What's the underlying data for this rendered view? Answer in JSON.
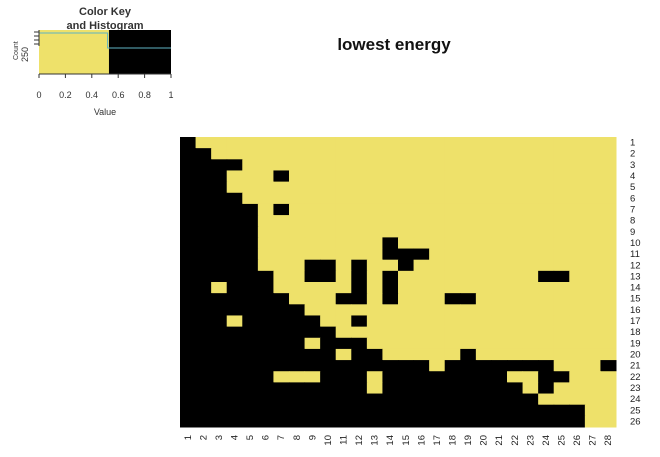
{
  "chart_data": {
    "type": "heatmap",
    "title": "lowest energy",
    "rows": [
      "1",
      "2",
      "3",
      "4",
      "5",
      "6",
      "7",
      "8",
      "9",
      "10",
      "11",
      "12",
      "13",
      "14",
      "15",
      "16",
      "17",
      "18",
      "19",
      "20",
      "21",
      "22",
      "23",
      "24",
      "25",
      "26"
    ],
    "columns": [
      "1",
      "2",
      "3",
      "4",
      "5",
      "6",
      "7",
      "8",
      "9",
      "10",
      "11",
      "12",
      "13",
      "14",
      "15",
      "16",
      "17",
      "18",
      "19",
      "20",
      "21",
      "22",
      "23",
      "24",
      "25",
      "26",
      "27",
      "28"
    ],
    "value_range": [
      0,
      1
    ],
    "colors": {
      "high": "#eee16a",
      "low": "#000000"
    },
    "cells": [
      [
        0,
        1,
        1,
        1,
        1,
        1,
        1,
        1,
        1,
        1,
        1,
        1,
        1,
        1,
        1,
        1,
        1,
        1,
        1,
        1,
        1,
        1,
        1,
        1,
        1,
        1,
        1,
        1
      ],
      [
        0,
        0,
        1,
        1,
        1,
        1,
        1,
        1,
        1,
        1,
        1,
        1,
        1,
        1,
        1,
        1,
        1,
        1,
        1,
        1,
        1,
        1,
        1,
        1,
        1,
        1,
        1,
        1
      ],
      [
        0,
        0,
        0,
        0,
        1,
        1,
        1,
        1,
        1,
        1,
        1,
        1,
        1,
        1,
        1,
        1,
        1,
        1,
        1,
        1,
        1,
        1,
        1,
        1,
        1,
        1,
        1,
        1
      ],
      [
        0,
        0,
        0,
        1,
        1,
        1,
        0,
        1,
        1,
        1,
        1,
        1,
        1,
        1,
        1,
        1,
        1,
        1,
        1,
        1,
        1,
        1,
        1,
        1,
        1,
        1,
        1,
        1
      ],
      [
        0,
        0,
        0,
        1,
        1,
        1,
        1,
        1,
        1,
        1,
        1,
        1,
        1,
        1,
        1,
        1,
        1,
        1,
        1,
        1,
        1,
        1,
        1,
        1,
        1,
        1,
        1,
        1
      ],
      [
        0,
        0,
        0,
        0,
        1,
        1,
        1,
        1,
        1,
        1,
        1,
        1,
        1,
        1,
        1,
        1,
        1,
        1,
        1,
        1,
        1,
        1,
        1,
        1,
        1,
        1,
        1,
        1
      ],
      [
        0,
        0,
        0,
        0,
        0,
        1,
        0,
        1,
        1,
        1,
        1,
        1,
        1,
        1,
        1,
        1,
        1,
        1,
        1,
        1,
        1,
        1,
        1,
        1,
        1,
        1,
        1,
        1
      ],
      [
        0,
        0,
        0,
        0,
        0,
        1,
        1,
        1,
        1,
        1,
        1,
        1,
        1,
        1,
        1,
        1,
        1,
        1,
        1,
        1,
        1,
        1,
        1,
        1,
        1,
        1,
        1,
        1
      ],
      [
        0,
        0,
        0,
        0,
        0,
        1,
        1,
        1,
        1,
        1,
        1,
        1,
        1,
        1,
        1,
        1,
        1,
        1,
        1,
        1,
        1,
        1,
        1,
        1,
        1,
        1,
        1,
        1
      ],
      [
        0,
        0,
        0,
        0,
        0,
        1,
        1,
        1,
        1,
        1,
        1,
        1,
        1,
        0,
        1,
        1,
        1,
        1,
        1,
        1,
        1,
        1,
        1,
        1,
        1,
        1,
        1,
        1
      ],
      [
        0,
        0,
        0,
        0,
        0,
        1,
        1,
        1,
        1,
        1,
        1,
        1,
        1,
        0,
        0,
        0,
        1,
        1,
        1,
        1,
        1,
        1,
        1,
        1,
        1,
        1,
        1,
        1
      ],
      [
        0,
        0,
        0,
        0,
        0,
        1,
        1,
        1,
        0,
        0,
        1,
        0,
        1,
        1,
        0,
        1,
        1,
        1,
        1,
        1,
        1,
        1,
        1,
        1,
        1,
        1,
        1,
        1
      ],
      [
        0,
        0,
        0,
        0,
        0,
        0,
        1,
        1,
        0,
        0,
        1,
        0,
        1,
        0,
        1,
        1,
        1,
        1,
        1,
        1,
        1,
        1,
        1,
        0,
        0,
        1,
        1,
        1
      ],
      [
        0,
        0,
        1,
        0,
        0,
        0,
        1,
        1,
        1,
        1,
        1,
        0,
        1,
        0,
        1,
        1,
        1,
        1,
        1,
        1,
        1,
        1,
        1,
        1,
        1,
        1,
        1,
        1
      ],
      [
        0,
        0,
        0,
        0,
        0,
        0,
        0,
        1,
        1,
        1,
        0,
        0,
        1,
        0,
        1,
        1,
        1,
        0,
        0,
        1,
        1,
        1,
        1,
        1,
        1,
        1,
        1,
        1
      ],
      [
        0,
        0,
        0,
        0,
        0,
        0,
        0,
        0,
        1,
        1,
        1,
        1,
        1,
        1,
        1,
        1,
        1,
        1,
        1,
        1,
        1,
        1,
        1,
        1,
        1,
        1,
        1,
        1
      ],
      [
        0,
        0,
        0,
        1,
        0,
        0,
        0,
        0,
        0,
        1,
        1,
        0,
        1,
        1,
        1,
        1,
        1,
        1,
        1,
        1,
        1,
        1,
        1,
        1,
        1,
        1,
        1,
        1
      ],
      [
        0,
        0,
        0,
        0,
        0,
        0,
        0,
        0,
        0,
        0,
        1,
        1,
        1,
        1,
        1,
        1,
        1,
        1,
        1,
        1,
        1,
        1,
        1,
        1,
        1,
        1,
        1,
        1
      ],
      [
        0,
        0,
        0,
        0,
        0,
        0,
        0,
        0,
        1,
        0,
        0,
        0,
        1,
        1,
        1,
        1,
        1,
        1,
        1,
        1,
        1,
        1,
        1,
        1,
        1,
        1,
        1,
        1
      ],
      [
        0,
        0,
        0,
        0,
        0,
        0,
        0,
        0,
        0,
        0,
        1,
        0,
        0,
        1,
        1,
        1,
        1,
        1,
        0,
        1,
        1,
        1,
        1,
        1,
        1,
        1,
        1,
        1
      ],
      [
        0,
        0,
        0,
        0,
        0,
        0,
        0,
        0,
        0,
        0,
        0,
        0,
        0,
        0,
        0,
        0,
        1,
        0,
        0,
        0,
        0,
        0,
        0,
        0,
        1,
        1,
        1,
        0
      ],
      [
        0,
        0,
        0,
        0,
        0,
        0,
        1,
        1,
        1,
        0,
        0,
        0,
        1,
        0,
        0,
        0,
        0,
        0,
        0,
        0,
        0,
        1,
        1,
        0,
        0,
        1,
        1,
        1
      ],
      [
        0,
        0,
        0,
        0,
        0,
        0,
        0,
        0,
        0,
        0,
        0,
        0,
        1,
        0,
        0,
        0,
        0,
        0,
        0,
        0,
        0,
        0,
        1,
        0,
        1,
        1,
        1,
        1
      ],
      [
        0,
        0,
        0,
        0,
        0,
        0,
        0,
        0,
        0,
        0,
        0,
        0,
        0,
        0,
        0,
        0,
        0,
        0,
        0,
        0,
        0,
        0,
        0,
        1,
        1,
        1,
        1,
        1
      ],
      [
        0,
        0,
        0,
        0,
        0,
        0,
        0,
        0,
        0,
        0,
        0,
        0,
        0,
        0,
        0,
        0,
        0,
        0,
        0,
        0,
        0,
        0,
        0,
        0,
        0,
        0,
        1,
        1
      ],
      [
        0,
        0,
        0,
        0,
        0,
        0,
        0,
        0,
        0,
        0,
        0,
        0,
        0,
        0,
        0,
        0,
        0,
        0,
        0,
        0,
        0,
        0,
        0,
        0,
        0,
        0,
        1,
        1
      ]
    ],
    "color_key": {
      "title_line1": "Color Key",
      "title_line2": "and Histogram",
      "xlabel": "Value",
      "ylabel": "Count",
      "y_tick": "250",
      "x_ticks": [
        "0",
        "0.2",
        "0.4",
        "0.6",
        "0.8",
        "1"
      ],
      "break": 0.53,
      "histogram_line_color": "#5fb3c3"
    }
  }
}
